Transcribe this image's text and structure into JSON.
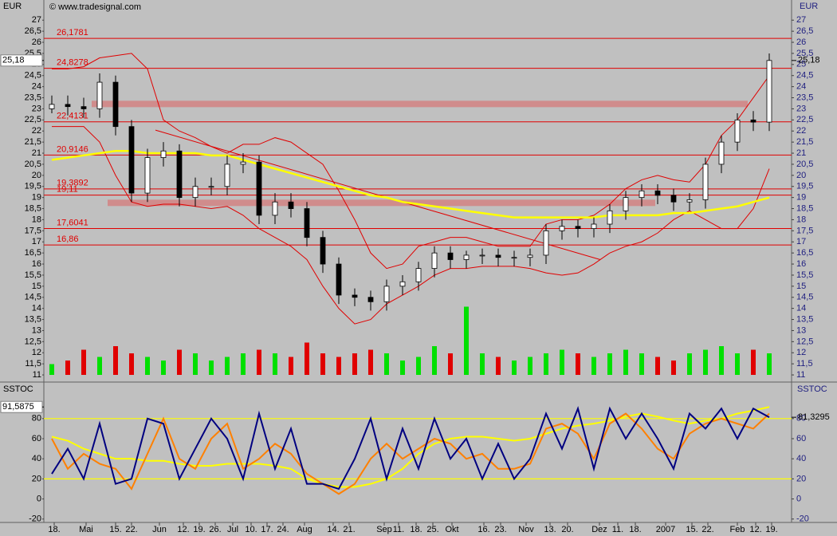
{
  "chart_data": [
    {
      "type": "candlestick",
      "title": "© www.tradesignal.com",
      "y_label": "EUR",
      "x": [
        1,
        3,
        5,
        7,
        9,
        11,
        13,
        15,
        17,
        19,
        21,
        23,
        25,
        27,
        29,
        31,
        33,
        35,
        37,
        39,
        41,
        43,
        45,
        47,
        49,
        51,
        53,
        55,
        57,
        59,
        61,
        63,
        65,
        67,
        69,
        71,
        73,
        75,
        77,
        79,
        81,
        83,
        85,
        87,
        89,
        91
      ],
      "open": [
        23.0,
        23.2,
        23.1,
        23.0,
        24.2,
        22.2,
        19.2,
        20.8,
        21.1,
        19.0,
        19.5,
        19.5,
        20.5,
        20.6,
        18.2,
        18.8,
        18.5,
        17.2,
        16.0,
        14.6,
        14.5,
        14.3,
        15.0,
        15.2,
        15.8,
        16.5,
        16.2,
        16.4,
        16.4,
        16.3,
        16.3,
        16.4,
        17.5,
        17.7,
        17.6,
        17.8,
        18.4,
        19.0,
        19.3,
        19.1,
        18.8,
        18.9,
        20.5,
        21.5,
        22.5,
        22.4
      ],
      "high": [
        23.6,
        23.6,
        23.5,
        24.6,
        24.5,
        22.5,
        21.2,
        21.5,
        21.4,
        19.9,
        19.9,
        20.9,
        21.0,
        20.9,
        19.2,
        19.2,
        18.8,
        17.5,
        16.3,
        14.9,
        14.8,
        15.3,
        15.5,
        16.1,
        16.8,
        16.8,
        16.6,
        16.7,
        16.7,
        16.6,
        16.7,
        17.8,
        18.0,
        18.0,
        18.1,
        18.7,
        19.3,
        19.6,
        19.6,
        19.4,
        19.2,
        20.8,
        21.8,
        22.8,
        22.9,
        25.5
      ],
      "low": [
        22.8,
        22.7,
        22.6,
        22.6,
        21.8,
        18.8,
        18.8,
        20.4,
        18.6,
        18.6,
        19.1,
        19.1,
        20.1,
        17.8,
        17.8,
        18.1,
        16.8,
        15.6,
        14.2,
        14.1,
        13.9,
        13.9,
        14.6,
        14.8,
        15.4,
        15.8,
        15.8,
        16.0,
        15.9,
        15.9,
        15.9,
        16.0,
        17.1,
        17.2,
        17.2,
        17.4,
        18.0,
        18.6,
        18.7,
        18.4,
        18.4,
        18.5,
        20.1,
        21.1,
        22.0,
        22.0
      ],
      "close": [
        23.2,
        23.1,
        23.0,
        24.2,
        22.2,
        19.2,
        20.8,
        21.1,
        19.0,
        19.5,
        19.5,
        20.5,
        20.6,
        18.2,
        18.8,
        18.5,
        17.2,
        16.0,
        14.6,
        14.5,
        14.3,
        15.0,
        15.2,
        15.8,
        16.5,
        16.2,
        16.4,
        16.4,
        16.3,
        16.3,
        16.4,
        17.5,
        17.7,
        17.6,
        17.8,
        18.4,
        19.0,
        19.3,
        19.1,
        18.8,
        18.9,
        20.5,
        21.5,
        22.5,
        22.4,
        25.18
      ],
      "up_color": "#ffffff",
      "down_color": "#000000",
      "series": [
        {
          "color": "#e00000",
          "width": 1,
          "values": [
            24.8,
            24.8,
            24.9,
            25.3,
            25.4,
            25.5,
            24.8,
            22.5,
            22.0,
            21.7,
            21.3,
            21.0,
            21.4,
            21.4,
            21.7,
            21.5,
            21.0,
            20.5,
            19.3,
            18.0,
            16.5,
            15.8,
            16.0,
            16.8,
            17.0,
            17.2,
            17.2,
            17.0,
            16.8,
            16.8,
            16.8,
            17.8,
            18.0,
            18.0,
            18.2,
            18.7,
            19.4,
            19.8,
            20.0,
            19.8,
            19.7,
            20.5,
            21.8,
            22.5,
            23.5,
            24.5
          ]
        },
        {
          "color": "#e00000",
          "width": 1,
          "values": [
            22.2,
            22.2,
            22.2,
            21.5,
            20.0,
            18.8,
            18.6,
            18.7,
            18.7,
            18.6,
            18.5,
            18.6,
            18.2,
            17.6,
            17.2,
            16.8,
            16.2,
            15.0,
            14.0,
            13.3,
            13.5,
            14.2,
            14.6,
            15.0,
            15.5,
            15.8,
            15.8,
            15.9,
            15.9,
            15.9,
            15.8,
            15.6,
            15.5,
            15.6,
            16.0,
            16.5,
            16.8,
            17.0,
            17.4,
            18.0,
            18.4,
            18.0,
            17.6,
            17.6,
            18.5,
            20.3
          ]
        },
        {
          "color": "#ffff00",
          "width": 2.5,
          "values": [
            20.7,
            20.8,
            20.9,
            21.0,
            21.1,
            21.1,
            21.0,
            21.0,
            21.0,
            21.0,
            20.9,
            20.9,
            20.7,
            20.5,
            20.3,
            20.1,
            19.9,
            19.7,
            19.5,
            19.3,
            19.1,
            19.0,
            18.8,
            18.7,
            18.6,
            18.5,
            18.4,
            18.3,
            18.2,
            18.1,
            18.1,
            18.1,
            18.1,
            18.1,
            18.1,
            18.2,
            18.2,
            18.2,
            18.2,
            18.3,
            18.3,
            18.4,
            18.5,
            18.6,
            18.8,
            19.0
          ]
        }
      ],
      "volume": {
        "values": [
          15,
          20,
          35,
          25,
          40,
          30,
          25,
          20,
          35,
          30,
          20,
          25,
          30,
          35,
          30,
          25,
          45,
          30,
          25,
          30,
          35,
          30,
          20,
          25,
          40,
          30,
          95,
          30,
          25,
          20,
          25,
          30,
          35,
          30,
          25,
          30,
          35,
          30,
          25,
          20,
          30,
          35,
          40,
          30,
          35,
          30
        ],
        "ylim": [
          0,
          100
        ],
        "up_color": "#00e000",
        "down_color": "#e00000"
      },
      "levels": [
        {
          "value": 26.1781,
          "label": "26,1781"
        },
        {
          "value": 24.8278,
          "label": "24,8278"
        },
        {
          "value": 22.4131,
          "label": "22,4131"
        },
        {
          "value": 20.9146,
          "label": "20,9146"
        },
        {
          "value": 19.3892,
          "label": "19,3892"
        },
        {
          "value": 19.11,
          "label": "19,11"
        },
        {
          "value": 17.6041,
          "label": "17,6041"
        },
        {
          "value": 16.86,
          "label": "16,86"
        }
      ],
      "level_color": "#e00000",
      "zones": [
        {
          "value": 23.22,
          "x": [
            6,
            88.3
          ]
        },
        {
          "value": 18.76,
          "x": [
            8,
            76.7
          ]
        }
      ],
      "zone_color": "#d08c8c",
      "trendline": {
        "x": [
          14,
          69.8
        ],
        "y": [
          22.04,
          16.2
        ]
      },
      "markers": [
        {
          "value": 25.18,
          "label": "25,18"
        }
      ],
      "xlim": [
        0,
        93.8
      ],
      "ylim": [
        10.75,
        27.8
      ],
      "yticks": [
        11,
        {
          "value": 11.5,
          "label": "11,5"
        },
        12,
        {
          "value": 12.5,
          "label": "12,5"
        },
        13,
        {
          "value": 13.5,
          "label": "13,5"
        },
        14,
        {
          "value": 14.5,
          "label": "14,5"
        },
        15,
        {
          "value": 15.5,
          "label": "15,5"
        },
        16,
        {
          "value": 16.5,
          "label": "16,5"
        },
        17,
        {
          "value": 17.5,
          "label": "17,5"
        },
        18,
        {
          "value": 18.5,
          "label": "18,5"
        },
        19,
        {
          "value": 19.5,
          "label": "19,5"
        },
        20,
        {
          "value": 20.5,
          "label": "20,5"
        },
        21,
        {
          "value": 21.5,
          "label": "21,5"
        },
        22,
        {
          "value": 22.5,
          "label": "22,5"
        },
        23,
        {
          "value": 23.5,
          "label": "23,5"
        },
        24,
        {
          "value": 24.5,
          "label": "24,5"
        },
        25,
        {
          "value": 25.5,
          "label": "25,5"
        },
        26,
        {
          "value": 26.5,
          "label": "26,5"
        },
        27
      ]
    },
    {
      "type": "line",
      "y_label": "SSTOC",
      "x": [
        1,
        3,
        5,
        7,
        9,
        11,
        13,
        15,
        17,
        19,
        21,
        23,
        25,
        27,
        29,
        31,
        33,
        35,
        37,
        39,
        41,
        43,
        45,
        47,
        49,
        51,
        53,
        55,
        57,
        59,
        61,
        63,
        65,
        67,
        69,
        71,
        73,
        75,
        77,
        79,
        81,
        83,
        85,
        87,
        89,
        91
      ],
      "series": [
        {
          "color": "#ffff00",
          "width": 2,
          "values": [
            62,
            58,
            50,
            45,
            40,
            40,
            38,
            38,
            35,
            33,
            33,
            35,
            35,
            35,
            33,
            30,
            20,
            15,
            12,
            12,
            15,
            20,
            30,
            45,
            55,
            60,
            62,
            62,
            60,
            58,
            60,
            65,
            70,
            73,
            75,
            78,
            82,
            85,
            82,
            78,
            75,
            78,
            80,
            85,
            88,
            91.5875
          ]
        },
        {
          "color": "#ff8000",
          "width": 2,
          "values": [
            60,
            30,
            45,
            35,
            30,
            10,
            45,
            80,
            40,
            30,
            60,
            75,
            30,
            40,
            55,
            45,
            25,
            15,
            5,
            15,
            40,
            55,
            40,
            50,
            60,
            55,
            40,
            45,
            30,
            30,
            35,
            70,
            75,
            65,
            40,
            75,
            85,
            70,
            50,
            40,
            65,
            75,
            80,
            75,
            70,
            85
          ]
        },
        {
          "color": "#000080",
          "width": 2,
          "values": [
            25,
            50,
            20,
            75,
            15,
            20,
            80,
            75,
            20,
            50,
            80,
            60,
            20,
            85,
            30,
            70,
            15,
            15,
            10,
            40,
            80,
            20,
            70,
            30,
            80,
            40,
            60,
            20,
            55,
            20,
            40,
            85,
            50,
            90,
            30,
            90,
            60,
            85,
            60,
            30,
            85,
            70,
            90,
            60,
            90,
            81.3295
          ]
        }
      ],
      "hlines": [
        80,
        20
      ],
      "hline_color": "#ffff00",
      "markers": [
        {
          "value": 91.5875,
          "label": "91,5875",
          "side": "left"
        },
        {
          "value": 81.3295,
          "label": "81,3295",
          "side": "right"
        }
      ],
      "xlim": [
        0,
        93.8
      ],
      "ylim": [
        -21,
        114
      ],
      "yticks": [
        -20,
        0,
        20,
        40,
        60,
        80
      ],
      "xticks": [
        {
          "value": 1.3,
          "label": "18."
        },
        {
          "value": 5.3,
          "label": "Mai"
        },
        {
          "value": 9,
          "label": "15."
        },
        {
          "value": 11,
          "label": "22."
        },
        {
          "value": 14.5,
          "label": "Jun"
        },
        {
          "value": 17.5,
          "label": "12."
        },
        {
          "value": 19.5,
          "label": "19."
        },
        {
          "value": 21.5,
          "label": "26."
        },
        {
          "value": 23.7,
          "label": "Jul"
        },
        {
          "value": 26,
          "label": "10."
        },
        {
          "value": 28,
          "label": "17."
        },
        {
          "value": 30,
          "label": "24."
        },
        {
          "value": 32.7,
          "label": "Aug"
        },
        {
          "value": 36.3,
          "label": "14."
        },
        {
          "value": 38.3,
          "label": "21."
        },
        {
          "value": 42.7,
          "label": "Sep"
        },
        {
          "value": 44.5,
          "label": "11."
        },
        {
          "value": 46.7,
          "label": "18."
        },
        {
          "value": 48.8,
          "label": "25."
        },
        {
          "value": 51.2,
          "label": "Okt"
        },
        {
          "value": 55.2,
          "label": "16."
        },
        {
          "value": 57.3,
          "label": "23."
        },
        {
          "value": 60.5,
          "label": "Nov"
        },
        {
          "value": 63.5,
          "label": "13."
        },
        {
          "value": 65.7,
          "label": "20."
        },
        {
          "value": 69.7,
          "label": "Dez"
        },
        {
          "value": 72,
          "label": "11."
        },
        {
          "value": 74.2,
          "label": "18."
        },
        {
          "value": 78,
          "label": "2007"
        },
        {
          "value": 81.3,
          "label": "15."
        },
        {
          "value": 83.3,
          "label": "22."
        },
        {
          "value": 87,
          "label": "Feb"
        },
        {
          "value": 89.3,
          "label": "12."
        },
        {
          "value": 91.3,
          "label": "19."
        }
      ]
    }
  ]
}
